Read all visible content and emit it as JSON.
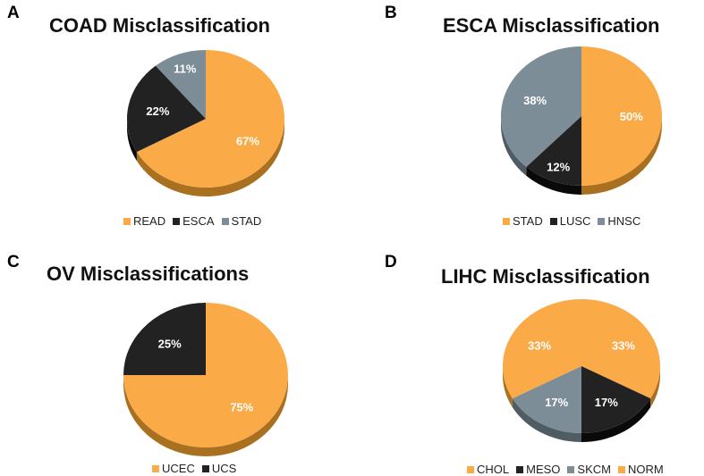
{
  "colors": {
    "orange": "#FBAA48",
    "orange_side": "#A8701F",
    "black": "#222222",
    "black_side": "#0a0a0a",
    "gray": "#7C8D97",
    "gray_side": "#4f5c64"
  },
  "chart_data": [
    {
      "type": "pie",
      "panel": "A",
      "title": "COAD Misclassification",
      "slices": [
        {
          "label": "READ",
          "value": 67,
          "text": "67%",
          "color": "#FBAA48"
        },
        {
          "label": "ESCA",
          "value": 22,
          "text": "22%",
          "color": "#222222"
        },
        {
          "label": "STAD",
          "value": 11,
          "text": "11%",
          "color": "#7C8D97"
        }
      ],
      "legend": [
        "READ",
        "ESCA",
        "STAD"
      ]
    },
    {
      "type": "pie",
      "panel": "B",
      "title": "ESCA Misclassification",
      "slices": [
        {
          "label": "STAD",
          "value": 50,
          "text": "50%",
          "color": "#FBAA48"
        },
        {
          "label": "LUSC",
          "value": 12,
          "text": "12%",
          "color": "#222222"
        },
        {
          "label": "HNSC",
          "value": 38,
          "text": "38%",
          "color": "#7C8D97"
        }
      ],
      "legend": [
        "STAD",
        "LUSC",
        "HNSC"
      ]
    },
    {
      "type": "pie",
      "panel": "C",
      "title": "OV Misclassifications",
      "slices": [
        {
          "label": "UCEC",
          "value": 75,
          "text": "75%",
          "color": "#FBAA48"
        },
        {
          "label": "UCS",
          "value": 25,
          "text": "25%",
          "color": "#222222"
        }
      ],
      "legend": [
        "UCEC",
        "UCS"
      ]
    },
    {
      "type": "pie",
      "panel": "D",
      "title": "LIHC Misclassification",
      "slices": [
        {
          "label": "CHOL",
          "value": 33,
          "text": "33%",
          "color": "#FBAA48"
        },
        {
          "label": "MESO",
          "value": 17,
          "text": "17%",
          "color": "#222222"
        },
        {
          "label": "SKCM",
          "value": 17,
          "text": "17%",
          "color": "#7C8D97"
        },
        {
          "label": "NORM",
          "value": 33,
          "text": "33%",
          "color": "#FBAA48"
        }
      ],
      "legend": [
        "CHOL",
        "MESO",
        "SKCM",
        "NORM"
      ]
    }
  ]
}
